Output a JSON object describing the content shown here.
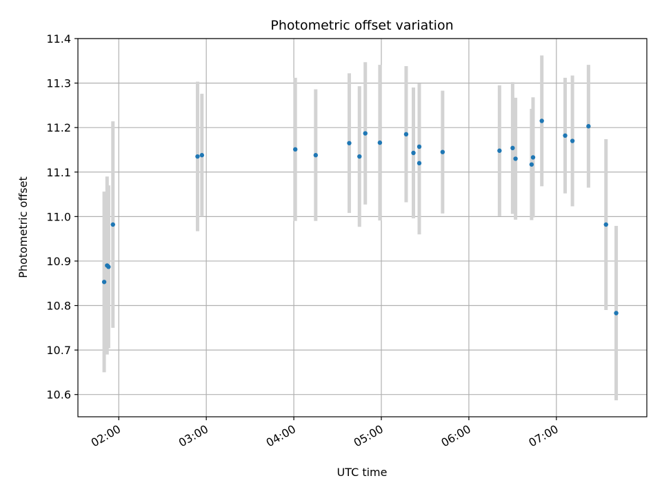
{
  "chart_data": {
    "type": "scatter",
    "title": "Photometric offset variation",
    "xlabel": "UTC time",
    "ylabel": "Photometric offset",
    "x_axis": "time",
    "xlim": [
      "01:32",
      "08:02"
    ],
    "ylim": [
      10.55,
      11.4
    ],
    "x_ticks": [
      "02:00",
      "03:00",
      "04:00",
      "05:00",
      "06:00",
      "07:00"
    ],
    "y_ticks": [
      "10.6",
      "10.7",
      "10.8",
      "10.9",
      "11.0",
      "11.1",
      "11.2",
      "11.3",
      "11.4"
    ],
    "grid": true,
    "marker_color": "#1f77b4",
    "errorbar_color": "#d3d3d3",
    "points": [
      {
        "time": "01:50",
        "y": 10.853,
        "yerr": 0.203
      },
      {
        "time": "01:52",
        "y": 10.89,
        "yerr": 0.2
      },
      {
        "time": "01:53",
        "y": 10.887,
        "yerr": 0.183
      },
      {
        "time": "01:56",
        "y": 10.982,
        "yerr": 0.232
      },
      {
        "time": "02:54",
        "y": 11.135,
        "yerr": 0.168
      },
      {
        "time": "02:57",
        "y": 11.138,
        "yerr": 0.138
      },
      {
        "time": "04:01",
        "y": 11.151,
        "yerr": 0.161
      },
      {
        "time": "04:15",
        "y": 11.138,
        "yerr": 0.148
      },
      {
        "time": "04:38",
        "y": 11.165,
        "yerr": 0.157
      },
      {
        "time": "04:45",
        "y": 11.135,
        "yerr": 0.158
      },
      {
        "time": "04:49",
        "y": 11.187,
        "yerr": 0.16
      },
      {
        "time": "04:59",
        "y": 11.166,
        "yerr": 0.175
      },
      {
        "time": "05:17",
        "y": 11.185,
        "yerr": 0.153
      },
      {
        "time": "05:22",
        "y": 11.143,
        "yerr": 0.147
      },
      {
        "time": "05:26",
        "y": 11.12,
        "yerr": 0.16
      },
      {
        "time": "05:26",
        "y": 11.157,
        "yerr": 0.142
      },
      {
        "time": "05:42",
        "y": 11.145,
        "yerr": 0.138
      },
      {
        "time": "06:21",
        "y": 11.148,
        "yerr": 0.147
      },
      {
        "time": "06:30",
        "y": 11.154,
        "yerr": 0.148
      },
      {
        "time": "06:32",
        "y": 11.13,
        "yerr": 0.137
      },
      {
        "time": "06:43",
        "y": 11.117,
        "yerr": 0.125
      },
      {
        "time": "06:44",
        "y": 11.133,
        "yerr": 0.135
      },
      {
        "time": "06:50",
        "y": 11.215,
        "yerr": 0.147
      },
      {
        "time": "07:06",
        "y": 11.182,
        "yerr": 0.13
      },
      {
        "time": "07:11",
        "y": 11.17,
        "yerr": 0.147
      },
      {
        "time": "07:22",
        "y": 11.203,
        "yerr": 0.138
      },
      {
        "time": "07:34",
        "y": 10.982,
        "yerr": 0.192
      },
      {
        "time": "07:41",
        "y": 10.783,
        "yerr": 0.196
      }
    ]
  }
}
